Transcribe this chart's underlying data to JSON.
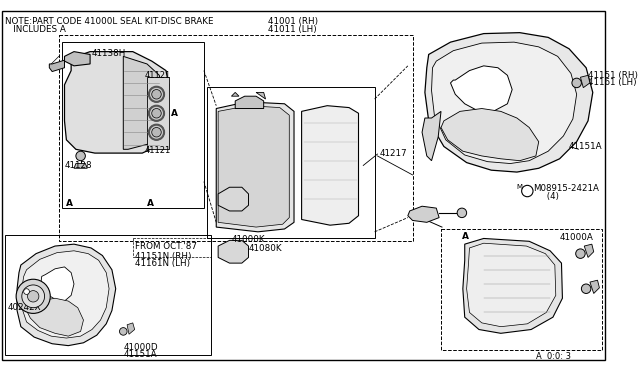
{
  "bg_color": "#ffffff",
  "line_color": "#000000",
  "text_color": "#000000",
  "note_text": "NOTE:PART CODE 41000L SEAL KIT-DISC BRAKE",
  "note_text2": "   INCLUDES A",
  "label_41001": "41001 (RH)",
  "label_41011": "41011 (LH)",
  "label_41138H": "41138H",
  "label_41121_top": "41121",
  "label_41121_bot": "41121",
  "label_41128": "41128",
  "label_41217": "41217",
  "label_41000K": "41000K",
  "label_41080K": "41080K",
  "label_41151_RH": "41151 (RH)",
  "label_41161_LH": "41161 (LH)",
  "label_41151A_top": "41151A",
  "label_08915": "M08915-2421A",
  "label_08915b": "     (4)",
  "label_41000A": "41000A",
  "label_from_oct": "FROM OCT.'87",
  "label_41151N": "41151N (RH)",
  "label_41161N": "41161N (LH)",
  "label_40242X": "40242X",
  "label_41000D": "41000D",
  "label_41151A_bot": "41151A",
  "label_ref": "A  0:0: 3"
}
